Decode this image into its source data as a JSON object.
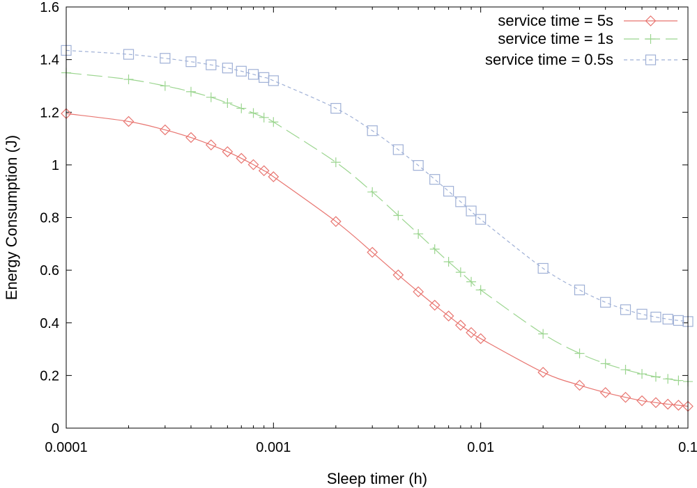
{
  "chart_data": {
    "type": "line",
    "xlabel": "Sleep timer (h)",
    "ylabel": "Energy Consumption (J)",
    "xscale": "log",
    "xlim": [
      0.0001,
      0.1
    ],
    "ylim": [
      0,
      1.6
    ],
    "x_ticks": [
      {
        "value": 0.0001,
        "label": "0.0001"
      },
      {
        "value": 0.001,
        "label": "0.001"
      },
      {
        "value": 0.01,
        "label": "0.01"
      },
      {
        "value": 0.1,
        "label": "0.1"
      }
    ],
    "y_ticks": [
      {
        "value": 0,
        "label": "0"
      },
      {
        "value": 0.2,
        "label": "0.2"
      },
      {
        "value": 0.4,
        "label": "0.4"
      },
      {
        "value": 0.6,
        "label": "0.6"
      },
      {
        "value": 0.8,
        "label": "0.8"
      },
      {
        "value": 1.0,
        "label": "1"
      },
      {
        "value": 1.2,
        "label": "1.2"
      },
      {
        "value": 1.4,
        "label": "1.4"
      },
      {
        "value": 1.6,
        "label": "1.6"
      }
    ],
    "grid": false,
    "legend_position": "top-right",
    "x": [
      0.0001,
      0.0002,
      0.0003,
      0.0004,
      0.0005,
      0.0006,
      0.0007,
      0.0008,
      0.0009,
      0.001,
      0.002,
      0.003,
      0.004,
      0.005,
      0.006,
      0.007,
      0.008,
      0.009,
      0.01,
      0.02,
      0.03,
      0.04,
      0.05,
      0.06,
      0.07,
      0.08,
      0.09,
      0.1
    ],
    "series": [
      {
        "name": "service time = 5s",
        "color": "#e8746f",
        "marker": "diamond",
        "line_style": "solid",
        "values": [
          1.195,
          1.165,
          1.133,
          1.104,
          1.076,
          1.05,
          1.025,
          1.001,
          0.978,
          0.955,
          0.785,
          0.668,
          0.582,
          0.518,
          0.467,
          0.426,
          0.391,
          0.363,
          0.34,
          0.212,
          0.163,
          0.135,
          0.117,
          0.104,
          0.097,
          0.091,
          0.087,
          0.083
        ]
      },
      {
        "name": "service time = 1s",
        "color": "#9bd58f",
        "marker": "plus",
        "line_style": "long-dash",
        "values": [
          1.35,
          1.325,
          1.3,
          1.278,
          1.257,
          1.235,
          1.215,
          1.197,
          1.18,
          1.163,
          1.01,
          0.897,
          0.808,
          0.738,
          0.68,
          0.632,
          0.592,
          0.556,
          0.525,
          0.358,
          0.284,
          0.245,
          0.222,
          0.206,
          0.195,
          0.187,
          0.181,
          0.177
        ]
      },
      {
        "name": "service time = 0.5s",
        "color": "#9fb0d6",
        "marker": "square",
        "line_style": "short-dash",
        "values": [
          1.435,
          1.42,
          1.405,
          1.392,
          1.38,
          1.368,
          1.356,
          1.344,
          1.332,
          1.32,
          1.215,
          1.13,
          1.058,
          0.998,
          0.945,
          0.9,
          0.86,
          0.825,
          0.793,
          0.607,
          0.525,
          0.478,
          0.45,
          0.433,
          0.422,
          0.414,
          0.409,
          0.405
        ]
      }
    ]
  }
}
